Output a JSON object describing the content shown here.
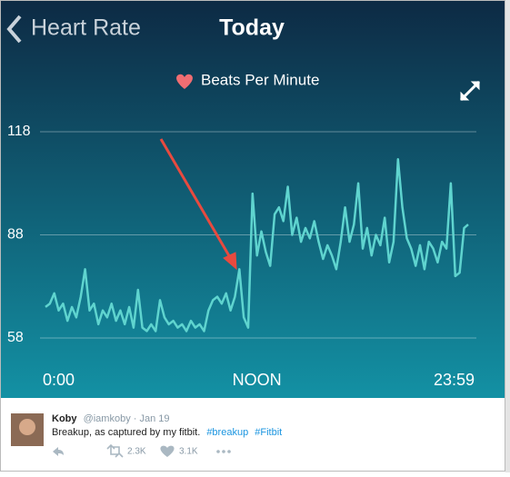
{
  "header": {
    "back": "Heart Rate",
    "title": "Today"
  },
  "chart_data": {
    "type": "line",
    "title": "Beats Per Minute",
    "x": [
      0,
      15,
      30,
      45,
      60,
      75,
      90,
      105,
      120,
      135,
      150,
      165,
      180,
      195,
      210,
      225,
      240,
      255,
      270,
      285,
      300,
      315,
      330,
      345,
      360,
      375,
      390,
      405,
      420,
      435,
      450,
      465,
      480,
      495,
      510,
      525,
      540,
      555,
      570,
      585,
      600,
      615,
      630,
      645,
      660,
      675,
      690,
      705,
      720,
      735,
      750,
      765,
      780,
      795,
      810,
      825,
      840,
      855,
      870,
      885,
      900,
      915,
      930,
      945,
      960,
      975,
      990,
      1005,
      1020,
      1035,
      1050,
      1065,
      1080,
      1095,
      1110,
      1125,
      1140,
      1155,
      1170,
      1185,
      1200,
      1215,
      1230,
      1245,
      1260,
      1275,
      1290,
      1305,
      1320,
      1335,
      1350,
      1365,
      1380,
      1395,
      1410,
      1425,
      1439
    ],
    "series": [
      {
        "name": "Heart Rate",
        "color": "#5fd4cf",
        "values": [
          67,
          68,
          71,
          66,
          68,
          63,
          67,
          64,
          70,
          78,
          66,
          68,
          62,
          66,
          64,
          68,
          63,
          66,
          62,
          67,
          61,
          72,
          61,
          60,
          62,
          60,
          69,
          64,
          62,
          63,
          61,
          62,
          60,
          63,
          61,
          62,
          60,
          66,
          69,
          70,
          68,
          71,
          66,
          70,
          78,
          64,
          61,
          100,
          82,
          89,
          83,
          79,
          94,
          96,
          92,
          102,
          88,
          93,
          86,
          90,
          87,
          92,
          86,
          81,
          85,
          82,
          78,
          86,
          96,
          86,
          91,
          103,
          84,
          90,
          82,
          88,
          85,
          93,
          80,
          86,
          110,
          96,
          87,
          84,
          79,
          85,
          78,
          86,
          84,
          80,
          86,
          84,
          103,
          76,
          77,
          90,
          91
        ]
      }
    ],
    "xlim": [
      0,
      1439
    ],
    "xticks": [
      {
        "value": 0,
        "label": "0:00"
      },
      {
        "value": 720,
        "label": "NOON"
      },
      {
        "value": 1439,
        "label": "23:59"
      }
    ],
    "ylim": [
      58,
      118
    ],
    "yticks": [
      58,
      88,
      118
    ],
    "grid": true
  },
  "tweet": {
    "name": "Koby",
    "handle": "@iamkoby",
    "date": "Jan 19",
    "text": "Breakup, as captured by my fitbit.",
    "hashtags": [
      "#breakup",
      "#Fitbit"
    ],
    "retweets": "2.3K",
    "likes": "3.1K"
  }
}
